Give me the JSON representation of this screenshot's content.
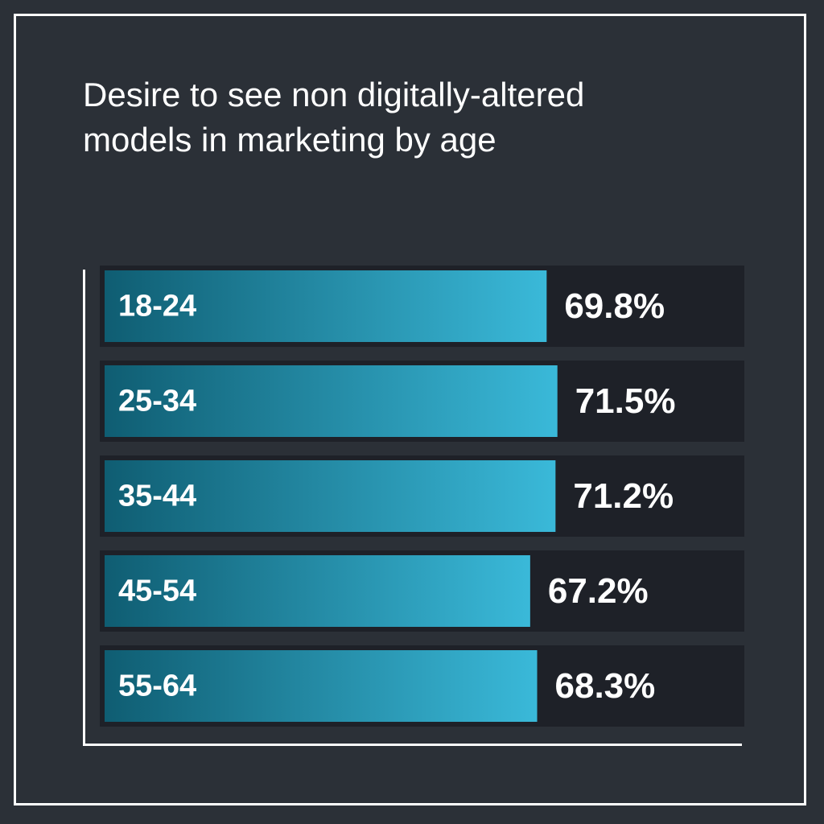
{
  "chart_data": {
    "type": "bar",
    "orientation": "horizontal",
    "title": [
      "Desire to see non digitally-altered",
      "models in marketing by age"
    ],
    "categories": [
      "18-24",
      "25-34",
      "35-44",
      "45-54",
      "55-64"
    ],
    "values": [
      69.8,
      71.5,
      71.2,
      67.2,
      68.3
    ],
    "value_labels": [
      "69.8%",
      "71.5%",
      "71.2%",
      "67.2%",
      "68.3%"
    ],
    "xlim": [
      0,
      100
    ],
    "grid": false,
    "legend": "none"
  },
  "colors": {
    "background": "#2b3037",
    "track": "#1e2128",
    "bar_start": "#0f5d72",
    "bar_end": "#3ab9d9",
    "text": "#ffffff"
  }
}
